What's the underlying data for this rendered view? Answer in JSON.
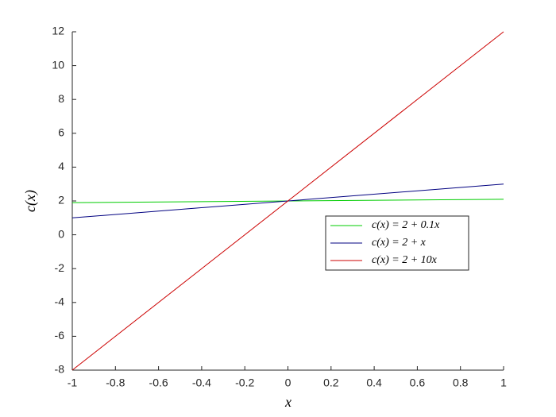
{
  "chart_data": {
    "type": "line",
    "x_label": "x",
    "y_label": "c(x)",
    "x": [
      -1,
      1
    ],
    "series": [
      {
        "name": "c(x) = 2 + 0.1x",
        "color": "#00cc00",
        "values": [
          1.9,
          2.1
        ]
      },
      {
        "name": "c(x) = 2 + x",
        "color": "#000080",
        "values": [
          1,
          3
        ]
      },
      {
        "name": "c(x) = 2 + 10x",
        "color": "#cc0000",
        "values": [
          -8,
          12
        ]
      }
    ],
    "xlim": [
      -1,
      1
    ],
    "xticks": [
      -1,
      -0.8,
      -0.6,
      -0.4,
      -0.2,
      0,
      0.2,
      0.4,
      0.6,
      0.8,
      1
    ],
    "ylim": [
      -8,
      12
    ],
    "yticks": [
      -8,
      -6,
      -4,
      -2,
      0,
      2,
      4,
      6,
      8,
      10,
      12
    ],
    "grid": false,
    "legend": "center right"
  }
}
